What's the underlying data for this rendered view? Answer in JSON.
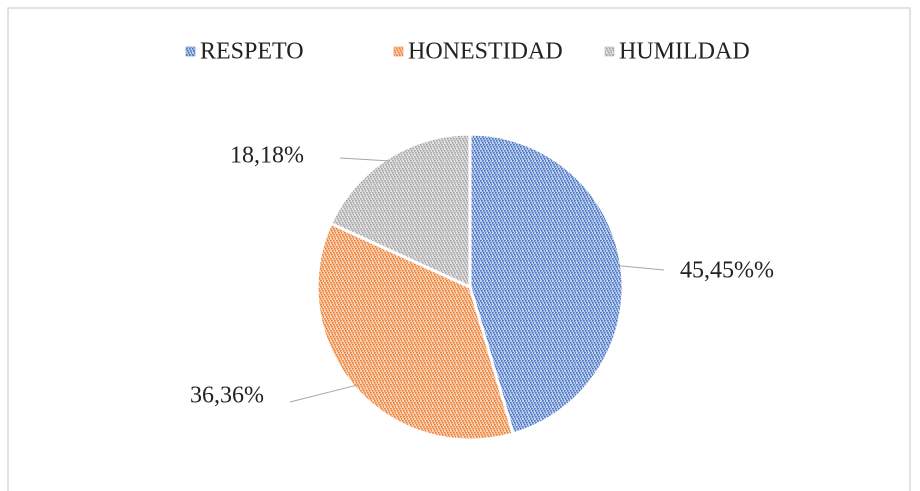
{
  "chart_data": {
    "type": "pie",
    "categories": [
      "RESPETO",
      "HONESTIDAD",
      "HUMILDAD"
    ],
    "values": [
      45.45,
      36.36,
      18.18
    ],
    "value_labels": [
      "45,45%%",
      "36,36%",
      "18,18%"
    ],
    "colors": [
      "#4472c4",
      "#ed7d31",
      "#a5a5a5"
    ],
    "legend": "top"
  }
}
